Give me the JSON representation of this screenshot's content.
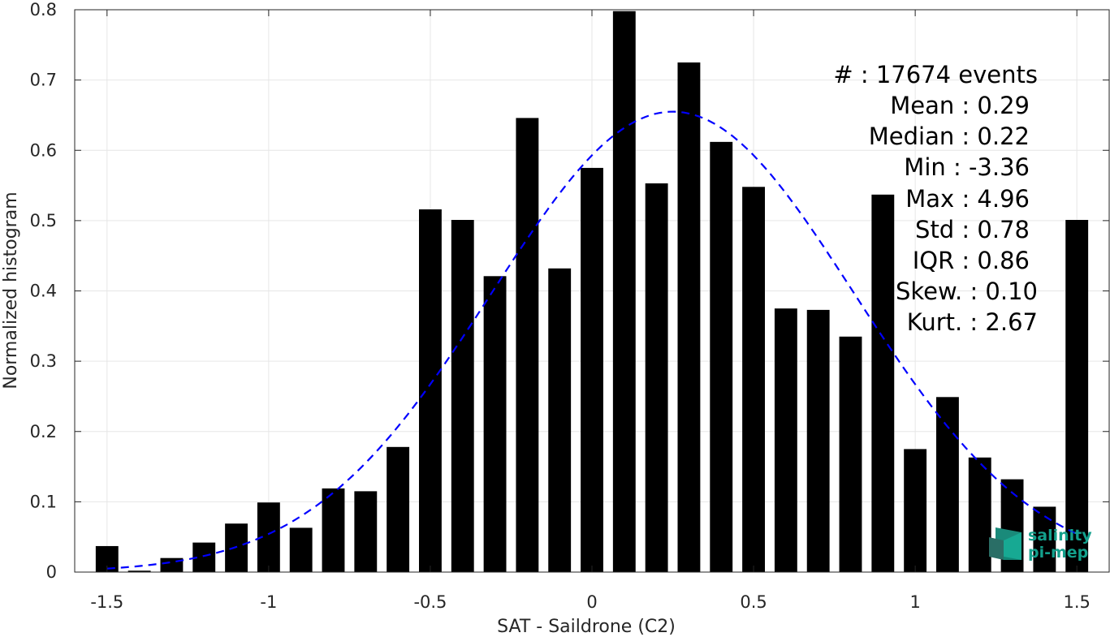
{
  "chart_data": {
    "type": "bar",
    "xlabel": "SAT - Saildrone (C2)",
    "ylabel": "Normalized histogram",
    "xlim": [
      -1.6,
      1.6
    ],
    "ylim": [
      0,
      0.8
    ],
    "xticks": [
      -1.5,
      -1,
      -0.5,
      0,
      0.5,
      1,
      1.5
    ],
    "xtick_labels": [
      "-1.5",
      "-1",
      "-0.5",
      "0",
      "0.5",
      "1",
      "1.5"
    ],
    "yticks": [
      0,
      0.1,
      0.2,
      0.3,
      0.4,
      0.5,
      0.6,
      0.7,
      0.8
    ],
    "ytick_labels": [
      "0",
      "0.1",
      "0.2",
      "0.3",
      "0.4",
      "0.5",
      "0.6",
      "0.7",
      "0.8"
    ],
    "grid": true,
    "bar_width": 0.07,
    "bar_color": "#000000",
    "x": [
      -1.5,
      -1.4,
      -1.3,
      -1.2,
      -1.1,
      -1.0,
      -0.9,
      -0.8,
      -0.7,
      -0.6,
      -0.5,
      -0.4,
      -0.3,
      -0.2,
      -0.1,
      0.0,
      0.1,
      0.2,
      0.3,
      0.4,
      0.5,
      0.6,
      0.7,
      0.8,
      0.9,
      1.0,
      1.1,
      1.2,
      1.3,
      1.4,
      1.5
    ],
    "values": [
      0.037,
      0.002,
      0.02,
      0.042,
      0.069,
      0.099,
      0.063,
      0.119,
      0.115,
      0.178,
      0.516,
      0.501,
      0.421,
      0.646,
      0.432,
      0.575,
      0.798,
      0.553,
      0.725,
      0.612,
      0.548,
      0.375,
      0.373,
      0.335,
      0.537,
      0.175,
      0.249,
      0.163,
      0.132,
      0.093,
      0.501
    ],
    "fit": {
      "type": "gaussian",
      "color": "#0000ff",
      "line_style": "dashed",
      "mean": 0.25,
      "std": 0.56,
      "peak": 0.655,
      "x_range": [
        -1.5,
        1.5
      ]
    },
    "stats": [
      {
        "label": "#",
        "sep": " : ",
        "value": "17674 events"
      },
      {
        "label": "Mean",
        "sep": " : ",
        "value": "0.29"
      },
      {
        "label": "Median",
        "sep": " : ",
        "value": "0.22"
      },
      {
        "label": "Min",
        "sep": " : ",
        "value": "-3.36"
      },
      {
        "label": "Max",
        "sep": " : ",
        "value": "4.96"
      },
      {
        "label": "Std",
        "sep": " : ",
        "value": "0.78"
      },
      {
        "label": "IQR",
        "sep": " : ",
        "value": "0.86"
      },
      {
        "label": "Skew.",
        "sep": " : ",
        "value": "0.10"
      },
      {
        "label": "Kurt.",
        "sep": " : ",
        "value": "2.67"
      }
    ]
  },
  "logo": {
    "line1": "salinity",
    "line2": "pi-mep",
    "color": "#13a08c"
  }
}
